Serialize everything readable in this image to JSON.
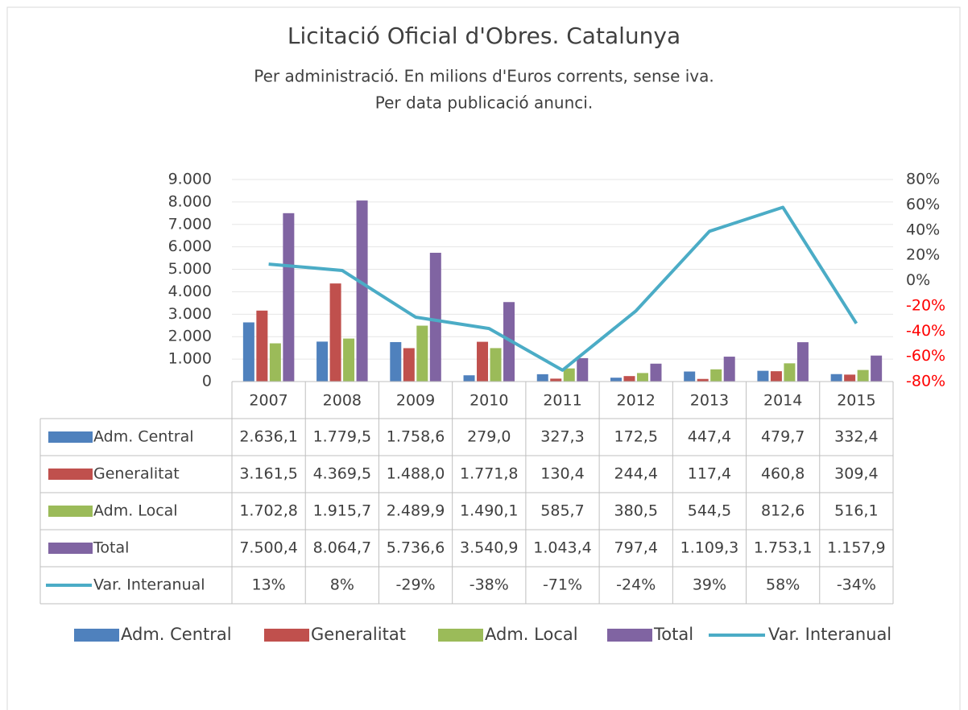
{
  "chart_data": {
    "type": "bar",
    "title": "Licitació Oficial d'Obres. Catalunya",
    "subtitle": [
      "Per administració. En milions d'Euros corrents, sense iva.",
      "Per data publicació anunci."
    ],
    "categories": [
      "2007",
      "2008",
      "2009",
      "2010",
      "2011",
      "2012",
      "2013",
      "2014",
      "2015"
    ],
    "ylim": [
      0,
      9000
    ],
    "yticks": [
      0,
      {
        "value": 1000,
        "label": "1.000"
      },
      {
        "value": 2000,
        "label": "2.000"
      },
      {
        "value": 3000,
        "label": "3.000"
      },
      {
        "value": 4000,
        "label": "4.000"
      },
      {
        "value": 5000,
        "label": "5.000"
      },
      {
        "value": 6000,
        "label": "6.000"
      },
      {
        "value": 7000,
        "label": "7.000"
      },
      {
        "value": 8000,
        "label": "8.000"
      },
      {
        "value": 9000,
        "label": "9.000"
      }
    ],
    "y2lim": [
      -80,
      80
    ],
    "y2ticks": [
      {
        "value": -80,
        "label": "-80%"
      },
      {
        "value": -60,
        "label": "-60%"
      },
      {
        "value": -40,
        "label": "-40%"
      },
      {
        "value": -20,
        "label": "-20%"
      },
      {
        "value": 0,
        "label": "0%"
      },
      {
        "value": 20,
        "label": "20%"
      },
      {
        "value": 40,
        "label": "40%"
      },
      {
        "value": 60,
        "label": "60%"
      },
      {
        "value": 80,
        "label": "80%"
      }
    ],
    "y2_negative_color": "#ff0000",
    "grid": true,
    "legend": "bottom",
    "series": [
      {
        "name": "Adm. Central",
        "color": "#4f81bd",
        "values": [
          2636.1,
          1779.5,
          1758.6,
          279.0,
          327.3,
          172.5,
          447.4,
          479.7,
          332.4
        ],
        "value_labels": [
          "2.636,1",
          "1.779,5",
          "1.758,6",
          "279,0",
          "327,3",
          "172,5",
          "447,4",
          "479,7",
          "332,4"
        ]
      },
      {
        "name": "Generalitat",
        "color": "#c0504d",
        "values": [
          3161.5,
          4369.5,
          1488.0,
          1771.8,
          130.4,
          244.4,
          117.4,
          460.8,
          309.4
        ],
        "value_labels": [
          "3.161,5",
          "4.369,5",
          "1.488,0",
          "1.771,8",
          "130,4",
          "244,4",
          "117,4",
          "460,8",
          "309,4"
        ]
      },
      {
        "name": "Adm. Local",
        "color": "#9bbb59",
        "values": [
          1702.8,
          1915.7,
          2489.9,
          1490.1,
          585.7,
          380.5,
          544.5,
          812.6,
          516.1
        ],
        "value_labels": [
          "1.702,8",
          "1.915,7",
          "2.489,9",
          "1.490,1",
          "585,7",
          "380,5",
          "544,5",
          "812,6",
          "516,1"
        ]
      },
      {
        "name": "Total",
        "color": "#8064a2",
        "values": [
          7500.4,
          8064.7,
          5736.6,
          3540.9,
          1043.4,
          797.4,
          1109.3,
          1753.1,
          1157.9
        ],
        "value_labels": [
          "7.500,4",
          "8.064,7",
          "5.736,6",
          "3.540,9",
          "1.043,4",
          "797,4",
          "1.109,3",
          "1.753,1",
          "1.157,9"
        ]
      },
      {
        "name": "Var. Interanual",
        "type": "line",
        "axis": "y2",
        "color": "#4bacc6",
        "values": [
          13,
          8,
          -29,
          -38,
          -71,
          -24,
          39,
          58,
          -34
        ],
        "value_labels": [
          "13%",
          "8%",
          "-29%",
          "-38%",
          "-71%",
          "-24%",
          "39%",
          "58%",
          "-34%"
        ]
      }
    ]
  }
}
